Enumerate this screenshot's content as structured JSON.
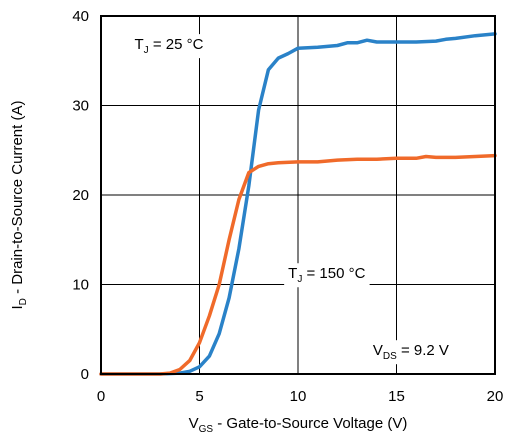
{
  "chart_data": {
    "type": "line",
    "xlabel": {
      "main": "V",
      "sub": "GS",
      "rest": " - Gate-to-Source Voltage (V)"
    },
    "ylabel": {
      "main": "I",
      "sub": "D",
      "rest": " - Drain-to-Source Current (A)"
    },
    "xlim": [
      0,
      20
    ],
    "ylim": [
      0,
      40
    ],
    "xticks": [
      0,
      5,
      10,
      15,
      20
    ],
    "yticks": [
      0,
      10,
      20,
      30,
      40
    ],
    "xtick_labels": [
      "0",
      "5",
      "10",
      "15",
      "20"
    ],
    "ytick_labels": [
      "0",
      "10",
      "20",
      "30",
      "40"
    ],
    "grid": true,
    "annotations": [
      {
        "id": "tj25",
        "main": "T",
        "sub": "J",
        "rest": " = 25 °C",
        "x": 1.7,
        "y": 36.3
      },
      {
        "id": "tj150",
        "main": "T",
        "sub": "J",
        "rest": " = 150 °C",
        "x": 9.5,
        "y": 10.7
      },
      {
        "id": "vds",
        "main": "V",
        "sub": "DS",
        "rest": " = 9.2 V",
        "x": 13.8,
        "y": 2.1
      }
    ],
    "series": [
      {
        "color": "#2a82c8",
        "x": [
          0,
          3,
          4,
          4.5,
          5,
          5.5,
          6,
          6.5,
          7,
          7.5,
          8,
          8.5,
          9,
          9.5,
          10,
          11,
          12,
          12.5,
          13,
          13.5,
          14,
          15,
          16,
          17,
          17.5,
          18,
          19,
          20
        ],
        "y": [
          0,
          0,
          0.1,
          0.3,
          0.8,
          2.0,
          4.5,
          8.5,
          14.0,
          21.0,
          29.5,
          34.0,
          35.3,
          35.8,
          36.4,
          36.5,
          36.7,
          37.0,
          37.0,
          37.3,
          37.1,
          37.1,
          37.1,
          37.2,
          37.4,
          37.5,
          37.8,
          38.0
        ]
      },
      {
        "color": "#f06a2a",
        "x": [
          0,
          3,
          3.5,
          4,
          4.5,
          5,
          5.5,
          6,
          6.5,
          7,
          7.5,
          8,
          8.5,
          9,
          10,
          11,
          12,
          13,
          14,
          15,
          16,
          16.5,
          17,
          18,
          19,
          20
        ],
        "y": [
          0,
          0,
          0.1,
          0.5,
          1.5,
          3.5,
          6.5,
          10.0,
          15.0,
          19.5,
          22.5,
          23.2,
          23.5,
          23.6,
          23.7,
          23.7,
          23.9,
          24.0,
          24.0,
          24.1,
          24.1,
          24.3,
          24.2,
          24.2,
          24.3,
          24.4
        ]
      }
    ]
  }
}
